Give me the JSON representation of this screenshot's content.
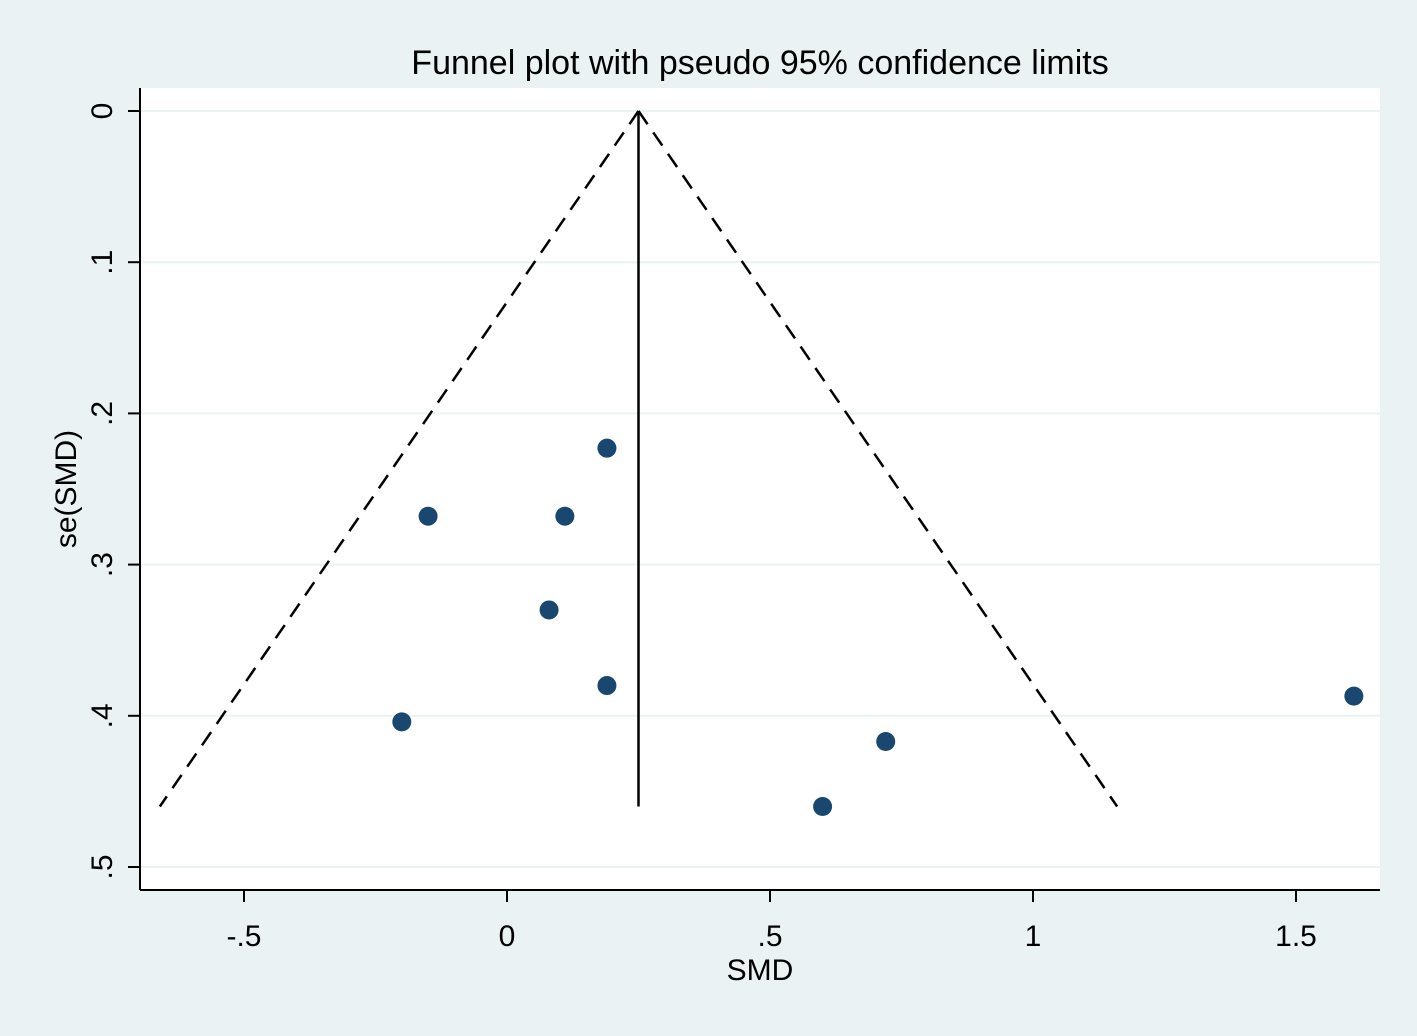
{
  "chart_data": {
    "type": "scatter",
    "title": "Funnel plot with pseudo 95% confidence limits",
    "xlabel": "SMD",
    "ylabel": "se(SMD)",
    "xlim": [
      -0.7,
      1.65
    ],
    "ylim": [
      0,
      0.5
    ],
    "y_reversed": true,
    "x_ticks": [
      {
        "value": -0.5,
        "label": "-.5"
      },
      {
        "value": 0,
        "label": "0"
      },
      {
        "value": 0.5,
        "label": ".5"
      },
      {
        "value": 1,
        "label": "1"
      },
      {
        "value": 1.5,
        "label": "1.5"
      }
    ],
    "y_ticks": [
      {
        "value": 0,
        "label": "0"
      },
      {
        "value": 0.1,
        "label": ".1"
      },
      {
        "value": 0.2,
        "label": ".2"
      },
      {
        "value": 0.3,
        "label": ".3"
      },
      {
        "value": 0.4,
        "label": ".4"
      },
      {
        "value": 0.5,
        "label": ".5"
      }
    ],
    "grid": "horizontal",
    "pooled_estimate": 0.25,
    "confidence_limits": {
      "level": 0.95,
      "apex": [
        0.25,
        0
      ],
      "left_end": [
        -0.66,
        0.46
      ],
      "right_end": [
        1.16,
        0.46
      ]
    },
    "points": [
      {
        "x": 0.19,
        "y": 0.223
      },
      {
        "x": -0.15,
        "y": 0.268
      },
      {
        "x": 0.11,
        "y": 0.268
      },
      {
        "x": 0.08,
        "y": 0.33
      },
      {
        "x": 0.19,
        "y": 0.38
      },
      {
        "x": -0.2,
        "y": 0.404
      },
      {
        "x": 0.6,
        "y": 0.46
      },
      {
        "x": 0.72,
        "y": 0.417
      },
      {
        "x": 1.61,
        "y": 0.387
      }
    ],
    "colors": {
      "background": "#eaf2f3",
      "plot_area": "#ffffff",
      "grid": "#eaf2f3",
      "marker": "#1a476f",
      "line": "#000000"
    }
  }
}
